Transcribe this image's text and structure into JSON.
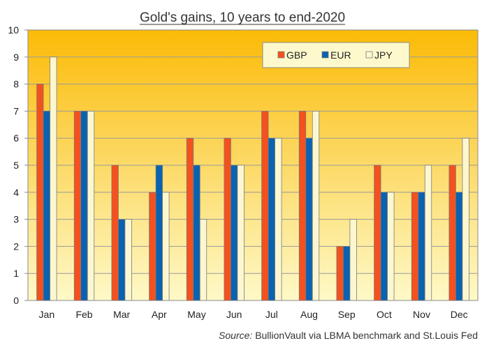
{
  "chart_data": {
    "type": "bar",
    "title": "Gold's gains, 10 years to end-2020",
    "categories": [
      "Jan",
      "Feb",
      "Mar",
      "Apr",
      "May",
      "Jun",
      "Jul",
      "Aug",
      "Sep",
      "Oct",
      "Nov",
      "Dec"
    ],
    "series": [
      {
        "name": "GBP",
        "color": "#f4511e",
        "values": [
          8,
          7,
          5,
          4,
          6,
          6,
          7,
          7,
          2,
          5,
          4,
          5
        ]
      },
      {
        "name": "EUR",
        "color": "#0a62b0",
        "values": [
          7,
          7,
          3,
          5,
          5,
          5,
          6,
          6,
          2,
          4,
          4,
          4
        ]
      },
      {
        "name": "JPY",
        "color": "#fdf7d0",
        "values": [
          9,
          7,
          3,
          4,
          3,
          5,
          6,
          7,
          3,
          4,
          5,
          6
        ]
      }
    ],
    "ylim": [
      0,
      10
    ],
    "yticks": [
      0,
      1,
      2,
      3,
      4,
      5,
      6,
      7,
      8,
      9,
      10
    ],
    "grid": true,
    "legend_position": "top-right",
    "background_gradient": [
      "#fbbb07",
      "#fef9c8"
    ],
    "source_prefix": "Source:",
    "source_text": "BullionVault via LBMA benchmark and St.Louis Fed"
  }
}
